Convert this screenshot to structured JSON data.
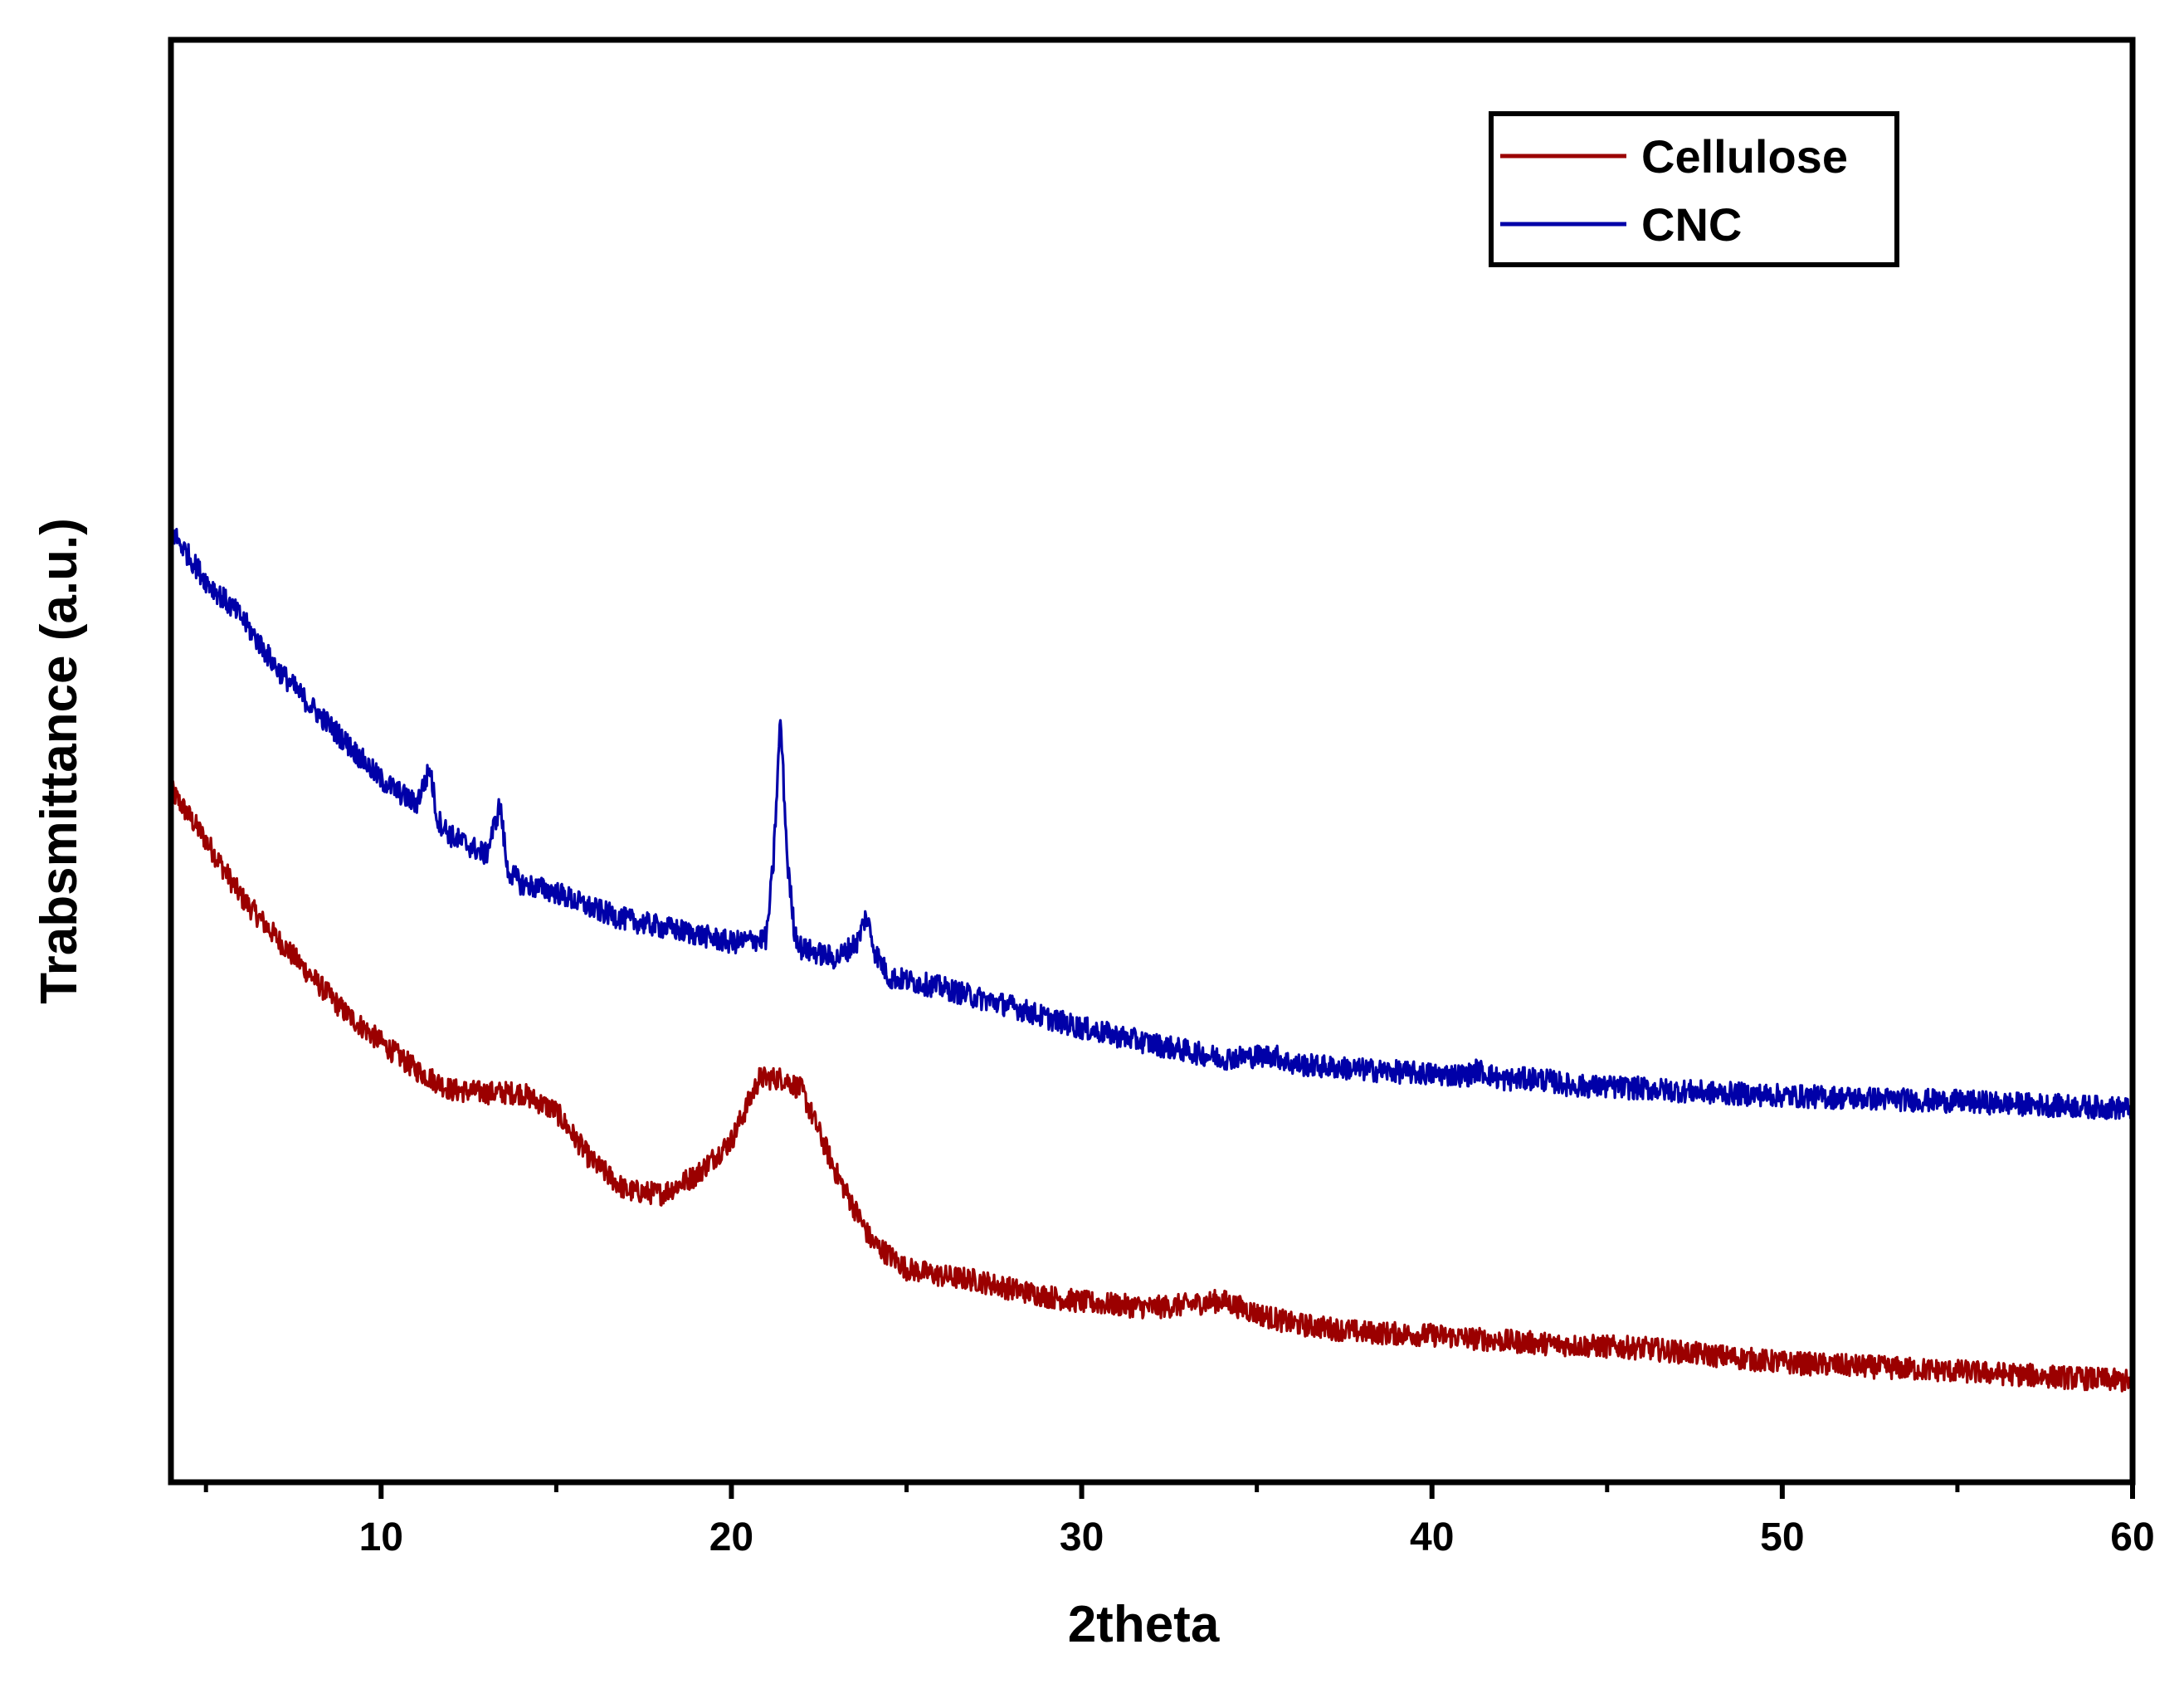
{
  "chart_data": {
    "type": "line",
    "title": "",
    "xlabel": "2theta",
    "ylabel": "Trabsmittance (a.u.)",
    "xlim": [
      4,
      60
    ],
    "ylim": [
      0,
      100
    ],
    "x_ticks": [
      10,
      20,
      30,
      40,
      50,
      60
    ],
    "x_minor_ticks": [
      5,
      15,
      25,
      35,
      45,
      55
    ],
    "y_ticks_shown": false,
    "grid": false,
    "legend": {
      "position": "top-right",
      "entries": [
        {
          "name": "Cellulose",
          "color": "#9B0000"
        },
        {
          "name": "CNC",
          "color": "#0000A8"
        }
      ]
    },
    "series": [
      {
        "name": "Cellulose",
        "color": "#9B0000",
        "noise": 0.8,
        "points": [
          [
            4,
            48
          ],
          [
            5,
            44.5
          ],
          [
            6,
            40.6
          ],
          [
            7,
            37.8
          ],
          [
            8,
            35.1
          ],
          [
            9,
            32.5
          ],
          [
            10,
            30.5
          ],
          [
            11,
            28.6
          ],
          [
            12,
            27.2
          ],
          [
            13,
            27.0
          ],
          [
            14,
            27.0
          ],
          [
            15,
            25.7
          ],
          [
            16,
            22.3
          ],
          [
            17,
            20.2
          ],
          [
            18,
            20.0
          ],
          [
            19,
            21.3
          ],
          [
            20,
            23.7
          ],
          [
            20.8,
            28.0
          ],
          [
            21.5,
            28.0
          ],
          [
            22,
            27.2
          ],
          [
            23,
            21.4
          ],
          [
            24,
            16.7
          ],
          [
            25,
            14.8
          ],
          [
            26,
            14.3
          ],
          [
            27,
            14.0
          ],
          [
            28,
            13.4
          ],
          [
            29,
            12.9
          ],
          [
            30,
            12.5
          ],
          [
            32,
            12.1
          ],
          [
            33,
            12.3
          ],
          [
            34,
            12.6
          ],
          [
            35,
            11.7
          ],
          [
            36,
            11.0
          ],
          [
            38,
            10.4
          ],
          [
            40,
            10.2
          ],
          [
            42,
            9.8
          ],
          [
            44,
            9.5
          ],
          [
            46,
            9.3
          ],
          [
            48,
            8.8
          ],
          [
            50,
            8.3
          ],
          [
            55,
            7.7
          ],
          [
            60,
            7.0
          ]
        ]
      },
      {
        "name": "CNC",
        "color": "#0000A8",
        "noise": 0.8,
        "points": [
          [
            4,
            66
          ],
          [
            5,
            62.5
          ],
          [
            6,
            60.0
          ],
          [
            7,
            56.5
          ],
          [
            8,
            53.8
          ],
          [
            9,
            51.3
          ],
          [
            10,
            48.7
          ],
          [
            11,
            47.0
          ],
          [
            11.4,
            49.5
          ],
          [
            11.6,
            46.0
          ],
          [
            12,
            44.8
          ],
          [
            13,
            43.5
          ],
          [
            13.4,
            47.0
          ],
          [
            13.6,
            42.5
          ],
          [
            14,
            41.5
          ],
          [
            15,
            40.9
          ],
          [
            16,
            39.8
          ],
          [
            17,
            39.0
          ],
          [
            18,
            38.5
          ],
          [
            19,
            38.0
          ],
          [
            20,
            37.4
          ],
          [
            21,
            37.7
          ],
          [
            21.2,
            43.0
          ],
          [
            21.4,
            53.0
          ],
          [
            21.6,
            43.0
          ],
          [
            21.8,
            38.2
          ],
          [
            22,
            37.0
          ],
          [
            23,
            36.3
          ],
          [
            23.6,
            37.5
          ],
          [
            23.85,
            39.3
          ],
          [
            24.1,
            36.8
          ],
          [
            24.5,
            35.0
          ],
          [
            25,
            34.8
          ],
          [
            26,
            34.3
          ],
          [
            27,
            33.6
          ],
          [
            28,
            33.0
          ],
          [
            29,
            32.2
          ],
          [
            30,
            31.5
          ],
          [
            32,
            30.4
          ],
          [
            34,
            29.4
          ],
          [
            35.5,
            29.6
          ],
          [
            36,
            29.0
          ],
          [
            38,
            28.6
          ],
          [
            40,
            28.3
          ],
          [
            41,
            28.2
          ],
          [
            41.3,
            28.6
          ],
          [
            42,
            27.9
          ],
          [
            43,
            28.0
          ],
          [
            44,
            27.5
          ],
          [
            46,
            27.3
          ],
          [
            48,
            27.0
          ],
          [
            50,
            26.8
          ],
          [
            55,
            26.4
          ],
          [
            60,
            25.9
          ]
        ]
      }
    ]
  }
}
